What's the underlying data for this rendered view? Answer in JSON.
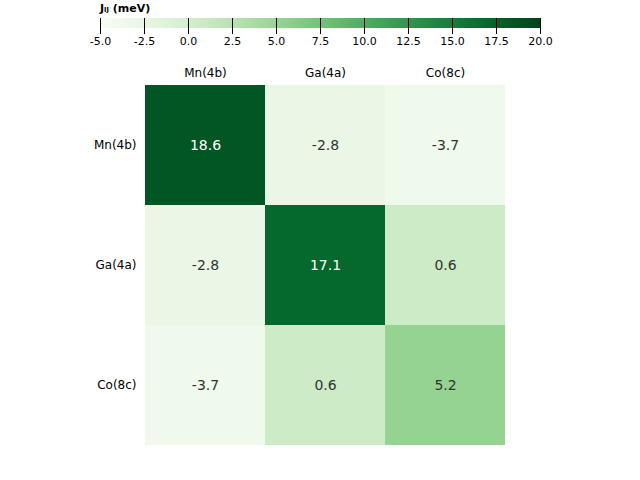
{
  "chart_data": {
    "type": "heatmap",
    "rows": [
      "Mn(4b)",
      "Ga(4a)",
      "Co(8c)"
    ],
    "columns": [
      "Mn(4b)",
      "Ga(4a)",
      "Co(8c)"
    ],
    "values": [
      [
        18.6,
        -2.8,
        -3.7
      ],
      [
        -2.8,
        17.1,
        0.6
      ],
      [
        -3.7,
        0.6,
        5.2
      ]
    ],
    "data_labels": true,
    "colorbar_label": "Jᵢⱼ (meV)",
    "colorbar_range": [
      -5,
      20
    ],
    "colorbar_ticks": [
      {
        "value": -5,
        "label": "-5.0"
      },
      -2.5,
      {
        "value": 0,
        "label": "0.0"
      },
      2.5,
      {
        "value": 5,
        "label": "5.0"
      },
      7.5,
      {
        "value": 10,
        "label": "10.0"
      },
      12.5,
      {
        "value": 15,
        "label": "15.0"
      },
      17.5,
      {
        "value": 20,
        "label": "20.0"
      }
    ]
  }
}
